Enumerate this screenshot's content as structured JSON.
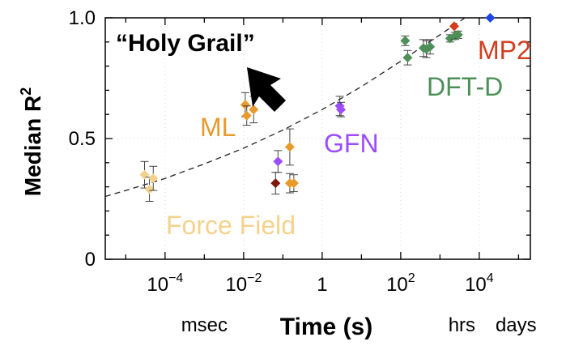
{
  "chart_data": {
    "type": "scatter",
    "xlabel": "Time (s)",
    "ylabel": "Median R",
    "ylabel_sup": "2",
    "xscale": "log",
    "xlim": [
      3e-06,
      200000.0
    ],
    "ylim": [
      0,
      1.0
    ],
    "x_ticks": [
      0.0001,
      0.01,
      1,
      100,
      10000
    ],
    "x_tick_labels": [
      {
        "base": "10",
        "exp": "−4"
      },
      {
        "base": "10",
        "exp": "−2"
      },
      {
        "base": "1",
        "exp": ""
      },
      {
        "base": "10",
        "exp": "2"
      },
      {
        "base": "10",
        "exp": "4"
      }
    ],
    "y_ticks": [
      0,
      0.5,
      1.0
    ],
    "y_tick_labels": [
      "0",
      "0.5",
      "1.0"
    ],
    "time_unit_labels": [
      {
        "text": "msec",
        "x": 0.001
      },
      {
        "text": "hrs",
        "x": 3600
      },
      {
        "text": "days",
        "x": 86400
      }
    ],
    "trend_curve": [
      [
        3e-06,
        0.26
      ],
      [
        1e-05,
        0.285
      ],
      [
        0.0001,
        0.335
      ],
      [
        0.001,
        0.395
      ],
      [
        0.01,
        0.46
      ],
      [
        0.1,
        0.535
      ],
      [
        1,
        0.62
      ],
      [
        10,
        0.715
      ],
      [
        100,
        0.82
      ],
      [
        1000,
        0.93
      ],
      [
        10000,
        1.04
      ]
    ],
    "series": [
      {
        "name": "Force Field",
        "color": "#f5d28c",
        "points": [
          {
            "x": 3e-05,
            "y": 0.35,
            "err": 0.055
          },
          {
            "x": 4e-05,
            "y": 0.29,
            "err": 0.05
          },
          {
            "x": 5e-05,
            "y": 0.335,
            "err": 0.05
          }
        ]
      },
      {
        "name": "ML",
        "color": "#e89a2c",
        "points": [
          {
            "x": 0.011,
            "y": 0.64,
            "err": 0.05
          },
          {
            "x": 0.012,
            "y": 0.595,
            "err": 0.04
          },
          {
            "x": 0.018,
            "y": 0.62,
            "err": 0.055
          },
          {
            "x": 0.15,
            "y": 0.465,
            "err": 0.075
          },
          {
            "x": 0.15,
            "y": 0.315,
            "err": 0.04
          },
          {
            "x": 0.19,
            "y": 0.315,
            "err": 0.035
          }
        ]
      },
      {
        "name": "",
        "color": "#7b1a0c",
        "points": [
          {
            "x": 0.065,
            "y": 0.315,
            "err": 0.045
          }
        ]
      },
      {
        "name": "GFN",
        "color": "#9b4dff",
        "points": [
          {
            "x": 0.075,
            "y": 0.405,
            "err": 0.045
          },
          {
            "x": 2.8,
            "y": 0.635,
            "err": 0.04
          },
          {
            "x": 3.0,
            "y": 0.62,
            "err": 0.03
          }
        ]
      },
      {
        "name": "DFT-D",
        "color": "#4e8f58",
        "points": [
          {
            "x": 130,
            "y": 0.905,
            "err": 0.02
          },
          {
            "x": 150,
            "y": 0.835,
            "err": 0.03
          },
          {
            "x": 380,
            "y": 0.875,
            "err": 0.035
          },
          {
            "x": 450,
            "y": 0.87,
            "err": 0.035
          },
          {
            "x": 560,
            "y": 0.88,
            "err": 0.03
          },
          {
            "x": 1800,
            "y": 0.915,
            "err": 0.015
          },
          {
            "x": 2400,
            "y": 0.925,
            "err": 0.015
          },
          {
            "x": 2900,
            "y": 0.93,
            "err": 0.015
          }
        ]
      },
      {
        "name": "MP2",
        "color": "#d43c1e",
        "points": [
          {
            "x": 2300,
            "y": 0.965,
            "err": 0
          }
        ]
      },
      {
        "name": "",
        "color": "#1e46e6",
        "points": [
          {
            "x": 19000,
            "y": 1.0,
            "err": 0
          }
        ]
      }
    ],
    "annotations": {
      "holy_grail": "“Holy Grail”",
      "force_field": "Force Field",
      "ml": "ML",
      "gfn": "GFN",
      "dft_d": "DFT-D",
      "mp2": "MP2"
    }
  }
}
